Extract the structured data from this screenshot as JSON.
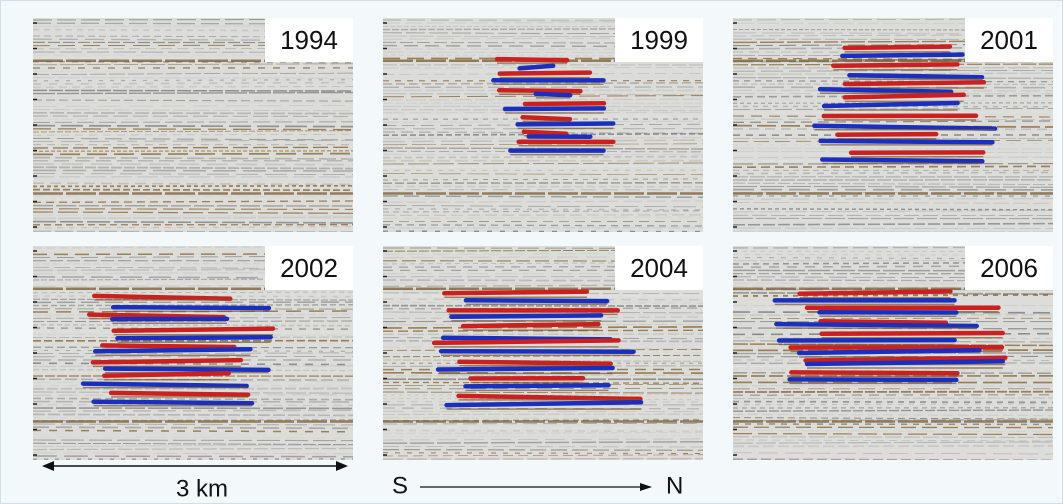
{
  "panels": [
    {
      "year": "1994"
    },
    {
      "year": "1999"
    },
    {
      "year": "2001"
    },
    {
      "year": "2002"
    },
    {
      "year": "2004"
    },
    {
      "year": "2006"
    }
  ],
  "scale_bar": {
    "label": "3 km"
  },
  "direction": {
    "start": "S",
    "end": "N"
  }
}
